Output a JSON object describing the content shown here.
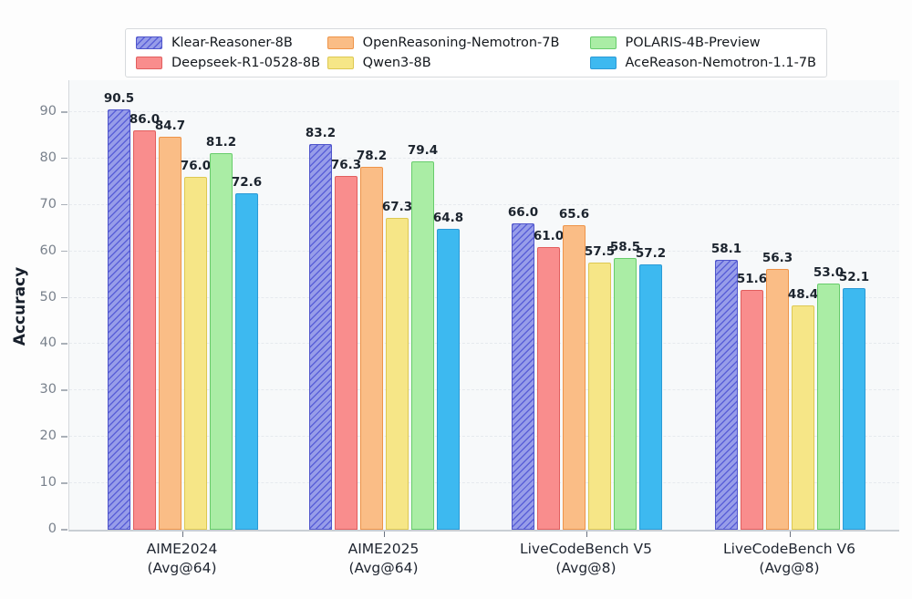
{
  "chart_data": {
    "type": "bar",
    "title": "",
    "xlabel": "",
    "ylabel": "Accuracy",
    "ylim": [
      0,
      97
    ],
    "yticks": [
      0,
      10,
      20,
      30,
      40,
      50,
      60,
      70,
      80,
      90
    ],
    "grid": "horizontal-dashed",
    "legend_position": "top-center",
    "value_labels": true,
    "value_label_decimals": 1,
    "categories": [
      {
        "label": "AIME2024",
        "sublabel": "(Avg@64)"
      },
      {
        "label": "AIME2025",
        "sublabel": "(Avg@64)"
      },
      {
        "label": "LiveCodeBench V5",
        "sublabel": "(Avg@8)"
      },
      {
        "label": "LiveCodeBench V6",
        "sublabel": "(Avg@8)"
      }
    ],
    "series": [
      {
        "name": "Klear-Reasoner-8B",
        "fill": "#979de9",
        "edge": "#5056cb",
        "hatch": "/",
        "hatch_color": "#5a60d8",
        "values": [
          90.5,
          83.2,
          66.0,
          58.1
        ]
      },
      {
        "name": "Deepseek-R1-0528-8B",
        "fill": "#f98d8d",
        "edge": "#e25e5e",
        "hatch": null,
        "values": [
          86.0,
          76.3,
          61.0,
          51.6
        ]
      },
      {
        "name": "OpenReasoning-Nemotron-7B",
        "fill": "#fabd86",
        "edge": "#ee9449",
        "hatch": null,
        "values": [
          84.7,
          78.2,
          65.6,
          56.3
        ]
      },
      {
        "name": "Qwen3-8B",
        "fill": "#f6e687",
        "edge": "#ddc852",
        "hatch": null,
        "values": [
          76.0,
          67.3,
          57.5,
          48.4
        ]
      },
      {
        "name": "POLARIS-4B-Preview",
        "fill": "#aaeda5",
        "edge": "#67cc6b",
        "hatch": null,
        "values": [
          81.2,
          79.4,
          58.5,
          53.0
        ]
      },
      {
        "name": "AceReason-Nemotron-1.1-7B",
        "fill": "#3db9f0",
        "edge": "#2b9ad6",
        "hatch": null,
        "values": [
          72.6,
          64.8,
          57.2,
          52.1
        ]
      }
    ],
    "legend_columns": [
      [
        0,
        1
      ],
      [
        2,
        3
      ],
      [
        4,
        5
      ]
    ]
  }
}
